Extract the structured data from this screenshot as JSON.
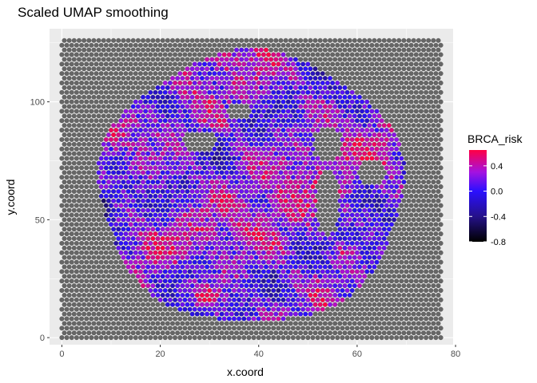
{
  "chart_data": {
    "type": "scatter",
    "title": "Scaled UMAP smoothing",
    "xlabel": "x.coord",
    "ylabel": "y.coord",
    "xlim": [
      -2.5,
      79.5
    ],
    "ylim": [
      -3,
      131
    ],
    "x_ticks": [
      0,
      20,
      40,
      60,
      80
    ],
    "x_tick_labels": [
      "0",
      "20",
      "40",
      "60",
      "80"
    ],
    "y_ticks": [
      0,
      50,
      100
    ],
    "y_tick_labels": [
      "0",
      "50",
      "100"
    ],
    "grid": true,
    "background_color": "#ebebeb",
    "point_grid": {
      "x_min": 0,
      "x_max": 77,
      "x_step": 1,
      "y_min": 0,
      "y_max": 127,
      "y_step": 2,
      "odd_row_x_offset": 0.5
    },
    "na_color": "#666666",
    "tissue_region": {
      "center_x": 38.5,
      "center_y": 63.5,
      "radius_x": 31,
      "radius_y": 57.5
    },
    "color_scale": {
      "name": "BRCA_risk",
      "min": -0.8,
      "max": 0.65,
      "stops": [
        {
          "value": -0.8,
          "color": "#000000"
        },
        {
          "value": -0.4,
          "color": "#25118a"
        },
        {
          "value": 0.0,
          "color": "#2b10ff"
        },
        {
          "value": 0.3,
          "color": "#a412e0"
        },
        {
          "value": 0.65,
          "color": "#ff0044"
        }
      ],
      "breaks": [
        0.4,
        0.0,
        -0.4,
        -0.8
      ],
      "break_labels": [
        "0.4",
        "0.0",
        "-0.4",
        "-0.8"
      ],
      "legend_position": "right"
    }
  }
}
